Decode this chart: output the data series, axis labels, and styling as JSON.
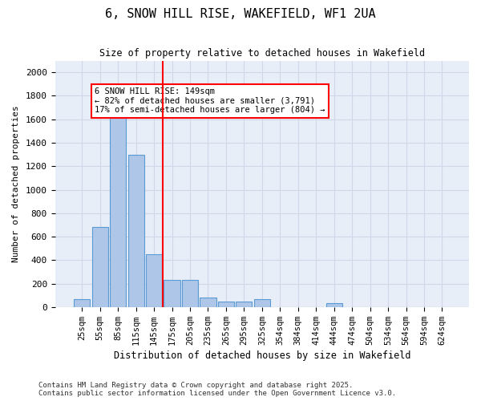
{
  "title": "6, SNOW HILL RISE, WAKEFIELD, WF1 2UA",
  "subtitle": "Size of property relative to detached houses in Wakefield",
  "xlabel": "Distribution of detached houses by size in Wakefield",
  "ylabel": "Number of detached properties",
  "categories": [
    "25sqm",
    "55sqm",
    "85sqm",
    "115sqm",
    "145sqm",
    "175sqm",
    "205sqm",
    "235sqm",
    "265sqm",
    "295sqm",
    "325sqm",
    "354sqm",
    "384sqm",
    "414sqm",
    "444sqm",
    "474sqm",
    "504sqm",
    "534sqm",
    "564sqm",
    "594sqm",
    "624sqm"
  ],
  "values": [
    65,
    680,
    1640,
    1300,
    450,
    230,
    230,
    80,
    45,
    45,
    65,
    0,
    0,
    0,
    30,
    0,
    0,
    0,
    0,
    0,
    0
  ],
  "bar_color": "#aec6e8",
  "bar_edge_color": "#5b9bd5",
  "red_line_index": 4,
  "annotation_text": "6 SNOW HILL RISE: 149sqm\n← 82% of detached houses are smaller (3,791)\n17% of semi-detached houses are larger (804) →",
  "annotation_box_color": "white",
  "annotation_box_edge_color": "red",
  "ylim": [
    0,
    2100
  ],
  "yticks": [
    0,
    200,
    400,
    600,
    800,
    1000,
    1200,
    1400,
    1600,
    1800,
    2000
  ],
  "grid_color": "#d0d8e8",
  "bg_color": "#e8eef8",
  "footer_line1": "Contains HM Land Registry data © Crown copyright and database right 2025.",
  "footer_line2": "Contains public sector information licensed under the Open Government Licence v3.0."
}
